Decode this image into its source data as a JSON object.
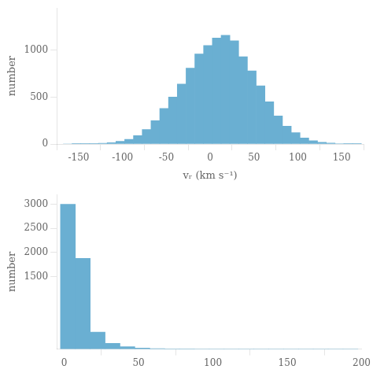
{
  "chart_data": [
    {
      "type": "histogram",
      "xlabel": "vᵣ (km s⁻¹)",
      "ylabel": "number",
      "color": "#6aafd2",
      "bins": [
        -167.5,
        -157.5,
        -147.5,
        -137.5,
        -127.5,
        -117.5,
        -107.5,
        -97.5,
        -87.5,
        -77.5,
        -67.5,
        -57.5,
        -47.5,
        -37.5,
        -27.5,
        -17.5,
        -7.5,
        2.5,
        12.5,
        22.5,
        32.5,
        42.5,
        52.5,
        62.5,
        72.5,
        82.5,
        92.5,
        102.5,
        112.5,
        122.5,
        132.5,
        142.5,
        152.5,
        162.5,
        172.5
      ],
      "values": [
        0,
        2,
        3,
        5,
        8,
        15,
        28,
        50,
        90,
        155,
        250,
        380,
        500,
        640,
        810,
        960,
        1050,
        1130,
        1160,
        1100,
        930,
        780,
        620,
        450,
        300,
        190,
        120,
        65,
        35,
        18,
        9,
        4,
        2,
        1
      ],
      "xlim": [
        -175,
        175
      ],
      "ylim": [
        0,
        1450
      ],
      "xticks": [
        -150,
        -100,
        -50,
        0,
        50,
        100,
        150
      ],
      "yticks": [
        0,
        500,
        1000
      ],
      "grid": false
    },
    {
      "type": "histogram",
      "ylabel": "number",
      "color": "#6aafd2",
      "bins": [
        -2.5,
        7.5,
        17.5,
        27.5,
        37.5,
        47.5,
        57.5,
        67.5,
        77.5,
        87.5,
        97.5,
        107.5,
        117.5,
        127.5,
        137.5,
        147.5,
        157.5,
        167.5,
        177.5,
        187.5,
        197.5
      ],
      "values": [
        3000,
        1880,
        350,
        120,
        50,
        20,
        10,
        5,
        3,
        2,
        1,
        1,
        1,
        0,
        0,
        0,
        0,
        0,
        0,
        0
      ],
      "xlim": [
        -5,
        200
      ],
      "ylim": [
        0,
        3200
      ],
      "xticks": [
        0,
        50,
        100,
        150,
        200
      ],
      "yticks": [
        1500,
        2000,
        2500,
        3000
      ],
      "grid": false
    }
  ]
}
